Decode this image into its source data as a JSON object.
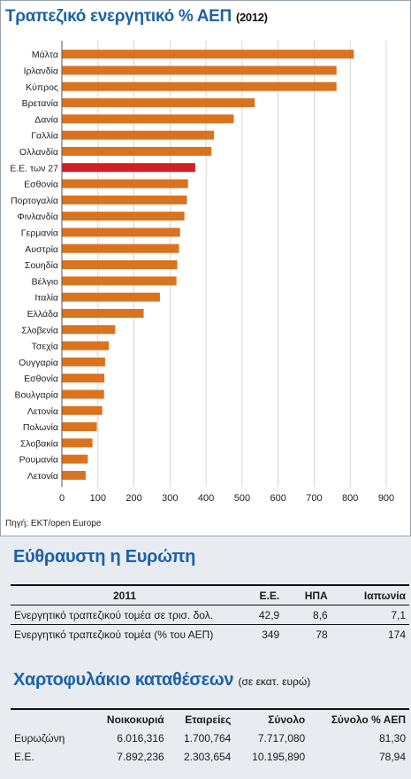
{
  "header": {
    "title": "Τραπεζικό ενεργητικό % ΑΕΠ",
    "year": "(2012)"
  },
  "colors": {
    "bar": "#d9731f",
    "highlight": "#d21f26",
    "title": "#1c62a6"
  },
  "chart_data": {
    "type": "bar",
    "orientation": "horizontal",
    "categories": [
      "Μάλτα",
      "Ιρλανδία",
      "Κύπρος",
      "Βρετανία",
      "Δανία",
      "Γαλλία",
      "Ολλανδία",
      "Ε.Ε. των 27",
      "Εσθονία",
      "Πορτογαλία",
      "Φινλανδία",
      "Γερμανία",
      "Αυστρία",
      "Σουηδία",
      "Βέλγιο",
      "Ιταλία",
      "Ελλάδα",
      "Σλοβενία",
      "Τσεχία",
      "Ουγγαρία",
      "Εσθονία",
      "Βουλγαρία",
      "Λετονία",
      "Πολωνία",
      "Σλοβακία",
      "Ρουμανία",
      "Λετονία"
    ],
    "values": [
      810,
      762,
      762,
      535,
      477,
      422,
      415,
      370,
      350,
      347,
      340,
      328,
      325,
      320,
      318,
      272,
      227,
      148,
      130,
      120,
      118,
      117,
      112,
      97,
      85,
      72,
      66
    ],
    "highlight_index": 7,
    "xlim": [
      0,
      900
    ],
    "xticks": [
      "0",
      "100",
      "200",
      "300",
      "400",
      "500",
      "600",
      "700",
      "800",
      "900"
    ],
    "title": "Τραπεζικό ενεργητικό % ΑΕΠ (2012)",
    "source": "Πηγή: ΕΚΤ/open Europe"
  },
  "section1": {
    "title": "Εύθραυστη η Ευρώπη",
    "headers": [
      "2011",
      "Ε.Ε.",
      "ΗΠΑ",
      "Ιαπωνία"
    ],
    "rows": [
      [
        "Ενεργητικό τραπεζικού τομέα σε τρισ. δολ.",
        "42,9",
        "8,6",
        "7,1"
      ],
      [
        "Ενεργητικό τραπεζικού τομέα (% του ΑΕΠ)",
        "349",
        "78",
        "174"
      ]
    ]
  },
  "section2": {
    "title": "Χαρτοφυλάκιο καταθέσεων",
    "unit": "(σε εκατ. ευρώ)",
    "headers": [
      "",
      "Νοικοκυριά",
      "Εταιρείες",
      "Σύνολο",
      "Σύνολο % ΑΕΠ"
    ],
    "rows": [
      [
        "Ευρωζώνη",
        "6.016,316",
        "1.700,764",
        "7.717,080",
        "81,30"
      ],
      [
        "Ε.Ε.",
        "7.892,236",
        "2.303,654",
        "10.195,890",
        "78,94"
      ]
    ]
  }
}
